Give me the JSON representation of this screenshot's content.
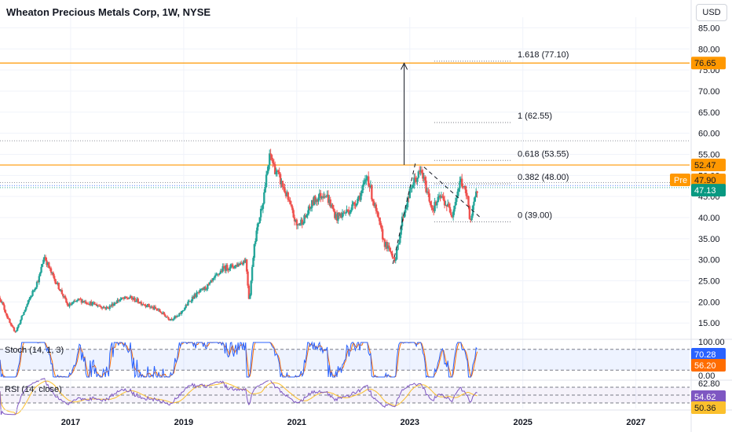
{
  "header": {
    "title": "Wheaton Precious Metals Corp, 1W, NYSE",
    "currency_button": "USD"
  },
  "colors": {
    "up": "#26a69a",
    "down": "#ef5350",
    "orange": "#ff9800",
    "last_price_green": "#089981",
    "stoch_k": "#2962ff",
    "stoch_d": "#ff6d00",
    "rsi_line": "#7e57c2",
    "rsi_ma": "#fbc02d",
    "stoch_tag": "#2962ff",
    "rsi_tag": "#7e57c2"
  },
  "chart_data": {
    "type": "candlestick",
    "title": "Wheaton Precious Metals Corp, 1W, NYSE",
    "x_ticks": [
      "2017",
      "2019",
      "2021",
      "2023",
      "2025",
      "2027"
    ],
    "x_range": [
      2015.8,
      2028.0
    ],
    "y_ticks": [
      "85.00",
      "80.00",
      "75.00",
      "70.00",
      "65.00",
      "60.00",
      "55.00",
      "50.00",
      "45.00",
      "40.00",
      "35.00",
      "30.00",
      "25.00",
      "20.00",
      "15.00"
    ],
    "y_range": [
      11.5,
      87.5
    ],
    "scale": "linear",
    "price_path": [
      [
        2015.8,
        21
      ],
      [
        2016.0,
        14
      ],
      [
        2016.08,
        13
      ],
      [
        2016.3,
        20
      ],
      [
        2016.5,
        26
      ],
      [
        2016.58,
        31
      ],
      [
        2016.7,
        27
      ],
      [
        2016.9,
        22
      ],
      [
        2017.0,
        19
      ],
      [
        2017.2,
        20.5
      ],
      [
        2017.45,
        19.5
      ],
      [
        2017.7,
        18.5
      ],
      [
        2017.9,
        20.5
      ],
      [
        2018.1,
        21
      ],
      [
        2018.35,
        19.5
      ],
      [
        2018.6,
        18
      ],
      [
        2018.8,
        16
      ],
      [
        2018.95,
        16.5
      ],
      [
        2019.2,
        21
      ],
      [
        2019.5,
        24
      ],
      [
        2019.75,
        28
      ],
      [
        2019.95,
        28.5
      ],
      [
        2020.15,
        30
      ],
      [
        2020.21,
        20
      ],
      [
        2020.3,
        34
      ],
      [
        2020.45,
        44
      ],
      [
        2020.58,
        55
      ],
      [
        2020.65,
        52
      ],
      [
        2020.85,
        46
      ],
      [
        2021.05,
        38
      ],
      [
        2021.2,
        40
      ],
      [
        2021.35,
        44
      ],
      [
        2021.55,
        46
      ],
      [
        2021.75,
        40
      ],
      [
        2022.0,
        42
      ],
      [
        2022.2,
        46
      ],
      [
        2022.3,
        50
      ],
      [
        2022.4,
        44
      ],
      [
        2022.6,
        34
      ],
      [
        2022.8,
        30
      ],
      [
        2022.92,
        40
      ],
      [
        2023.1,
        48
      ],
      [
        2023.25,
        51
      ],
      [
        2023.45,
        42
      ],
      [
        2023.6,
        45
      ],
      [
        2023.8,
        41
      ],
      [
        2023.95,
        49
      ],
      [
        2024.08,
        44
      ],
      [
        2024.12,
        39
      ],
      [
        2024.25,
        47.1
      ]
    ],
    "horizontal_levels": [
      {
        "price": 76.65,
        "label": "76.65",
        "type": "resistance"
      },
      {
        "price": 52.47,
        "label": "52.47",
        "type": "support"
      }
    ],
    "fib_levels": [
      {
        "ratio": "1.618",
        "price": 77.1,
        "label": "1.618 (77.10)"
      },
      {
        "ratio": "1",
        "price": 62.55,
        "label": "1 (62.55)"
      },
      {
        "ratio": "0.618",
        "price": 53.55,
        "label": "0.618 (53.55)"
      },
      {
        "ratio": "0.382",
        "price": 48.0,
        "label": "0.382 (48.00)"
      },
      {
        "ratio": "0",
        "price": 39.0,
        "label": "0 (39.00)"
      }
    ],
    "projection_arrow": {
      "x": 2022.95,
      "from_price": 52.5,
      "to_price": 76.6
    },
    "trendlines": [
      {
        "from": [
          2022.75,
          29
        ],
        "to": [
          2023.15,
          53
        ]
      },
      {
        "from": [
          2023.3,
          52
        ],
        "to": [
          2024.3,
          40
        ]
      }
    ],
    "price_tags": {
      "pre_label": "Pre",
      "pre_value": "47.90",
      "last_value": "47.13",
      "resistance_value": "76.65",
      "support_value": "52.47"
    }
  },
  "stoch": {
    "label": "Stoch (14, 1, 3)",
    "y_ticks": [
      "100.00",
      "0.00"
    ],
    "bands": [
      80,
      20
    ],
    "k_value": "70.28",
    "d_value": "56.20"
  },
  "rsi": {
    "label": "RSI (14, close)",
    "top_tick": "62.80",
    "bands": [
      70,
      30
    ],
    "rsi_value": "54.62",
    "ma_value": "50.36"
  }
}
